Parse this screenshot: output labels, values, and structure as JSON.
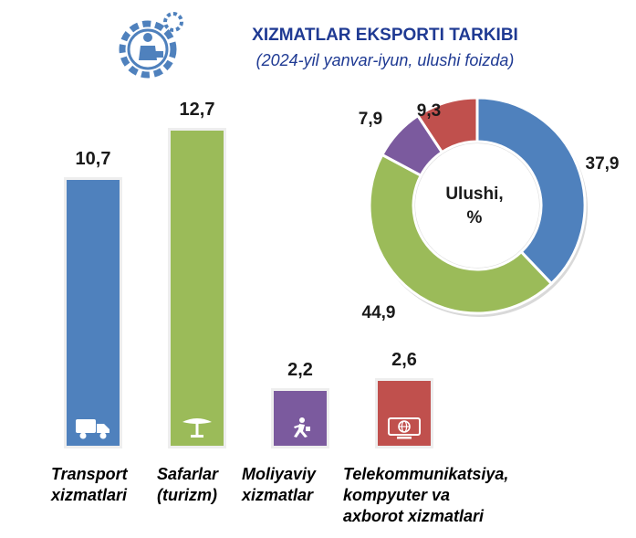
{
  "header": {
    "title": "XIZMATLAR EKSPORTI TARKIBI",
    "subtitle": "(2024-yil yanvar-iyun, ulushi foizda)",
    "logo_icon": "gear-person-icon"
  },
  "chart_data": [
    {
      "type": "bar",
      "title": "",
      "categories": [
        "Transport xizmatlari",
        "Safarlar (turizm)",
        "Moliyaviy xizmatlar",
        "Telekommunikatsiya, kompyuter va axborot xizmatlari"
      ],
      "category_lines": [
        [
          "Transport",
          "xizmatlari"
        ],
        [
          "Safarlar",
          "(turizm)"
        ],
        [
          "Moliyaviy",
          "xizmatlar"
        ],
        [
          "Telekommunikatsiya,",
          "kompyuter va",
          "axborot xizmatlari"
        ]
      ],
      "values": [
        10.7,
        12.7,
        2.2,
        2.6
      ],
      "value_labels": [
        "10,7",
        "12,7",
        "2,2",
        "2,6"
      ],
      "colors": [
        "#4f81bd",
        "#9bbb59",
        "#7b5a9e",
        "#c0504d"
      ],
      "icons": [
        "truck-icon",
        "beach-umbrella-icon",
        "running-person-icon",
        "monitor-globe-icon"
      ],
      "ylim": [
        0,
        12.7
      ],
      "grid": false
    },
    {
      "type": "pie",
      "donut": true,
      "center_label": [
        "Ulushi,",
        "%"
      ],
      "slices": [
        {
          "value": 37.9,
          "label": "37,9",
          "color": "#4f81bd"
        },
        {
          "value": 44.9,
          "label": "44,9",
          "color": "#9bbb59"
        },
        {
          "value": 7.9,
          "label": "7,9",
          "color": "#7b5a9e"
        },
        {
          "value": 9.3,
          "label": "9,3",
          "color": "#c0504d"
        }
      ]
    }
  ]
}
